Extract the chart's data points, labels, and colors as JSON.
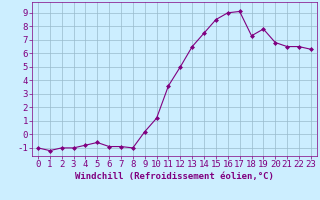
{
  "x": [
    0,
    1,
    2,
    3,
    4,
    5,
    6,
    7,
    8,
    9,
    10,
    11,
    12,
    13,
    14,
    15,
    16,
    17,
    18,
    19,
    20,
    21,
    22,
    23
  ],
  "y": [
    -1.0,
    -1.2,
    -1.0,
    -1.0,
    -0.8,
    -0.6,
    -0.9,
    -0.9,
    -1.0,
    0.2,
    1.2,
    3.6,
    5.0,
    6.5,
    7.5,
    8.5,
    9.0,
    9.1,
    7.3,
    7.8,
    6.8,
    6.5,
    6.5,
    6.3
  ],
  "line_color": "#800080",
  "marker": "D",
  "marker_size": 2,
  "bg_color": "#cceeff",
  "grid_color": "#99bbcc",
  "xlabel": "Windchill (Refroidissement éolien,°C)",
  "xlim": [
    -0.5,
    23.5
  ],
  "ylim": [
    -1.6,
    9.8
  ],
  "xticks": [
    0,
    1,
    2,
    3,
    4,
    5,
    6,
    7,
    8,
    9,
    10,
    11,
    12,
    13,
    14,
    15,
    16,
    17,
    18,
    19,
    20,
    21,
    22,
    23
  ],
  "yticks": [
    -1,
    0,
    1,
    2,
    3,
    4,
    5,
    6,
    7,
    8,
    9
  ],
  "tick_label_color": "#800080",
  "xlabel_color": "#800080",
  "xlabel_fontsize": 6.5,
  "tick_fontsize": 6.5,
  "spine_color": "#800080"
}
